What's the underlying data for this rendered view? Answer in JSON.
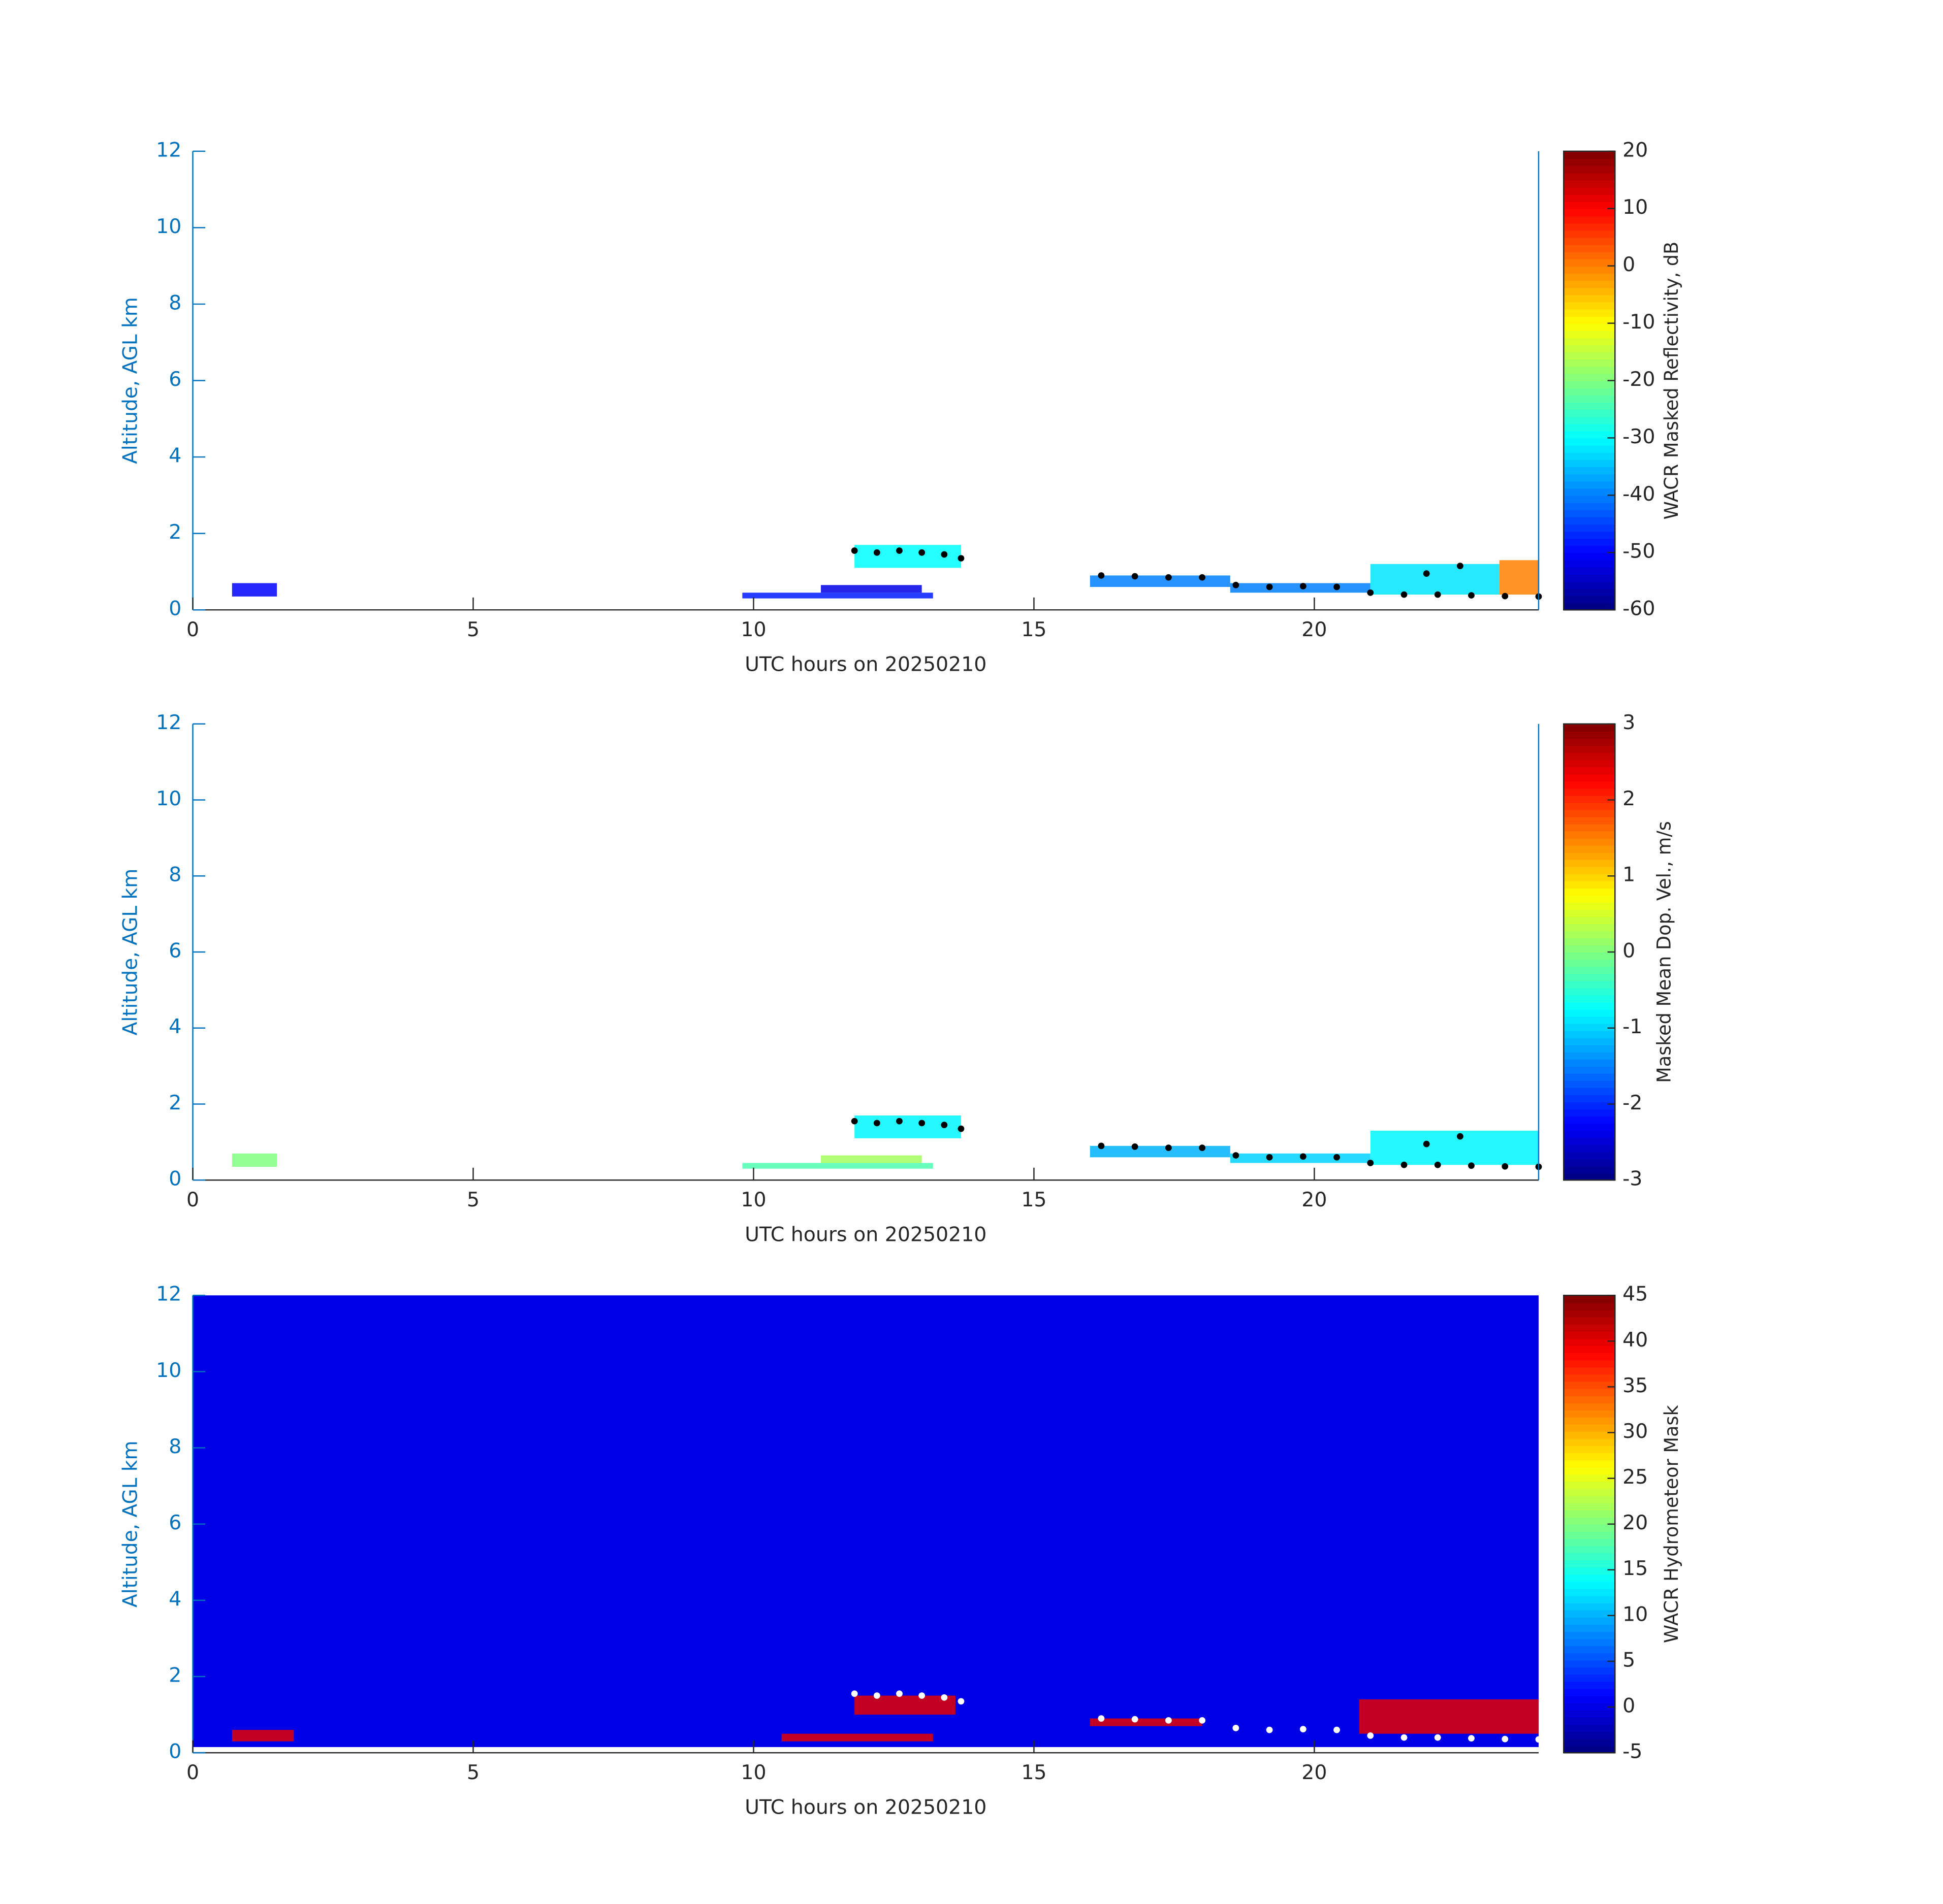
{
  "chart_data": [
    {
      "type": "heatmap",
      "xlabel": "UTC hours on 20250210",
      "ylabel": "Altitude, AGL km",
      "colorbar_label": "WACR Masked Reflectivity, dB",
      "xlim": [
        0,
        24
      ],
      "xticks": [
        0,
        5,
        10,
        15,
        20
      ],
      "ylim": [
        0,
        12
      ],
      "yticks": [
        0,
        2,
        4,
        6,
        8,
        10,
        12
      ],
      "clim": [
        -60,
        20
      ],
      "cticks": [
        -60,
        -50,
        -40,
        -30,
        -20,
        -10,
        0,
        10,
        20
      ],
      "colormap": "jet",
      "right_axis": true,
      "regions": [
        {
          "x": [
            0.7,
            1.5
          ],
          "y": [
            0.35,
            0.7
          ],
          "value": -50
        },
        {
          "x": [
            9.8,
            13.2
          ],
          "y": [
            0.3,
            0.45
          ],
          "value": -48
        },
        {
          "x": [
            11.2,
            13
          ],
          "y": [
            0.45,
            0.65
          ],
          "value": -52
        },
        {
          "x": [
            11.8,
            13.7
          ],
          "y": [
            1.1,
            1.7
          ],
          "value": -30
        },
        {
          "x": [
            16,
            18.5
          ],
          "y": [
            0.6,
            0.9
          ],
          "value": -40
        },
        {
          "x": [
            18.5,
            21
          ],
          "y": [
            0.45,
            0.7
          ],
          "value": -40
        },
        {
          "x": [
            21,
            23.3
          ],
          "y": [
            0.4,
            1.2
          ],
          "value": -32
        },
        {
          "x": [
            23.3,
            24
          ],
          "y": [
            0.4,
            1.3
          ],
          "value": 0
        }
      ],
      "cloud_base": {
        "color": "#000000",
        "x": [
          11.8,
          12.2,
          12.6,
          13,
          13.4,
          13.7,
          16.2,
          16.8,
          17.4,
          18,
          18.6,
          19.2,
          19.8,
          20.4,
          21,
          21.6,
          22.2,
          22.8,
          23.4,
          24,
          22,
          22.6
        ],
        "y": [
          1.55,
          1.5,
          1.55,
          1.5,
          1.45,
          1.35,
          0.9,
          0.88,
          0.85,
          0.85,
          0.65,
          0.6,
          0.62,
          0.6,
          0.45,
          0.4,
          0.4,
          0.38,
          0.36,
          0.35,
          0.95,
          1.15
        ]
      }
    },
    {
      "type": "heatmap",
      "xlabel": "UTC hours on 20250210",
      "ylabel": "Altitude, AGL km",
      "colorbar_label": "Masked Mean Dop. Vel., m/s",
      "xlim": [
        0,
        24
      ],
      "xticks": [
        0,
        5,
        10,
        15,
        20
      ],
      "ylim": [
        0,
        12
      ],
      "yticks": [
        0,
        2,
        4,
        6,
        8,
        10,
        12
      ],
      "clim": [
        -3,
        3
      ],
      "cticks": [
        -3,
        -2,
        -1,
        0,
        1,
        2,
        3
      ],
      "colormap": "jet",
      "right_axis": true,
      "regions": [
        {
          "x": [
            0.7,
            1.5
          ],
          "y": [
            0.35,
            0.7
          ],
          "value": 0
        },
        {
          "x": [
            9.8,
            13.2
          ],
          "y": [
            0.3,
            0.45
          ],
          "value": -0.3
        },
        {
          "x": [
            11.2,
            13
          ],
          "y": [
            0.45,
            0.65
          ],
          "value": 0.2
        },
        {
          "x": [
            11.8,
            13.7
          ],
          "y": [
            1.1,
            1.7
          ],
          "value": -0.8
        },
        {
          "x": [
            16,
            18.5
          ],
          "y": [
            0.6,
            0.9
          ],
          "value": -1.2
        },
        {
          "x": [
            18.5,
            21
          ],
          "y": [
            0.45,
            0.7
          ],
          "value": -1
        },
        {
          "x": [
            21,
            24
          ],
          "y": [
            0.4,
            1.3
          ],
          "value": -0.8
        }
      ],
      "cloud_base": {
        "color": "#000000",
        "x": [
          11.8,
          12.2,
          12.6,
          13,
          13.4,
          13.7,
          16.2,
          16.8,
          17.4,
          18,
          18.6,
          19.2,
          19.8,
          20.4,
          21,
          21.6,
          22.2,
          22.8,
          23.4,
          24,
          22,
          22.6
        ],
        "y": [
          1.55,
          1.5,
          1.55,
          1.5,
          1.45,
          1.35,
          0.9,
          0.88,
          0.85,
          0.85,
          0.65,
          0.6,
          0.62,
          0.6,
          0.45,
          0.4,
          0.4,
          0.38,
          0.36,
          0.35,
          0.95,
          1.15
        ]
      }
    },
    {
      "type": "heatmap",
      "xlabel": "UTC hours on 20250210",
      "ylabel": "Altitude, AGL km",
      "colorbar_label": "WACR Hydrometeor Mask",
      "xlim": [
        0,
        24
      ],
      "xticks": [
        0,
        5,
        10,
        15,
        20
      ],
      "ylim": [
        0,
        12
      ],
      "yticks": [
        0,
        2,
        4,
        6,
        8,
        10,
        12
      ],
      "clim": [
        -5,
        45
      ],
      "cticks": [
        -5,
        0,
        5,
        10,
        15,
        20,
        25,
        30,
        35,
        40,
        45
      ],
      "colormap": "jet",
      "right_axis": false,
      "regions": [
        {
          "x": [
            0,
            24
          ],
          "y": [
            0.15,
            12
          ],
          "value": 0
        },
        {
          "x": [
            0.7,
            1.8
          ],
          "y": [
            0.3,
            0.6
          ],
          "value": 40
        },
        {
          "x": [
            10.5,
            13.2
          ],
          "y": [
            0.3,
            0.5
          ],
          "value": 40
        },
        {
          "x": [
            11.8,
            13.6
          ],
          "y": [
            1.0,
            1.5
          ],
          "value": 40
        },
        {
          "x": [
            16,
            18
          ],
          "y": [
            0.7,
            0.9
          ],
          "value": 40
        },
        {
          "x": [
            20.8,
            24
          ],
          "y": [
            0.5,
            1.4
          ],
          "value": 40
        }
      ],
      "cloud_base": {
        "color": "#ffffff",
        "x": [
          11.8,
          12.2,
          12.6,
          13,
          13.4,
          13.7,
          16.2,
          16.8,
          17.4,
          18,
          18.6,
          19.2,
          19.8,
          20.4,
          21,
          21.6,
          22.2,
          22.8,
          23.4,
          24
        ],
        "y": [
          1.55,
          1.5,
          1.55,
          1.5,
          1.45,
          1.35,
          0.9,
          0.88,
          0.85,
          0.85,
          0.65,
          0.6,
          0.62,
          0.6,
          0.45,
          0.4,
          0.4,
          0.38,
          0.36,
          0.35
        ]
      }
    }
  ]
}
